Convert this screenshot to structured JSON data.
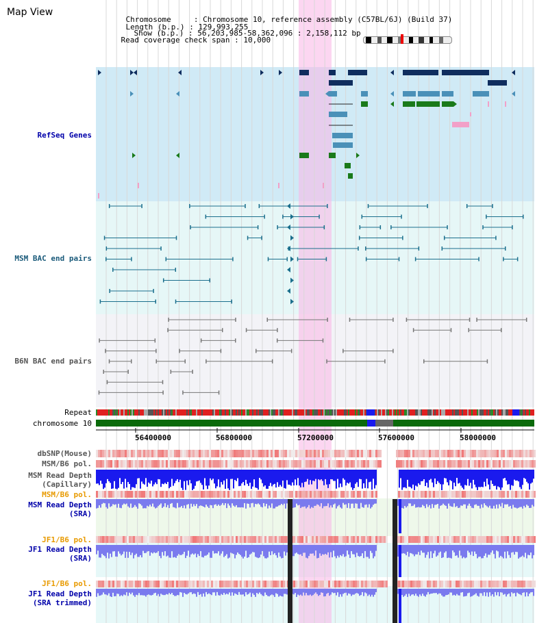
{
  "title": "Map View",
  "info": {
    "chromosome_label": "Chromosome",
    "chromosome_value": "Chromosome 10, reference assembly (C57BL/6J) (Build 37)",
    "length_label": "Length (b.p.)",
    "length_value": "129,993,255",
    "show_label": "Show (b.p.)",
    "show_value": "56,203,985-58,362,096 : 2,158,112 bp",
    "coverage_label": "Read coverage check span",
    "coverage_value": "10,000"
  },
  "tracks": {
    "refseq": "RefSeq Genes",
    "msm_bac": "MSM BAC end pairs",
    "b6n_bac": "B6N BAC end pairs",
    "repeat": "Repeat",
    "chromosome": "chromosome 10",
    "dbsnp": "dbSNP(Mouse)",
    "msm_pol1": "MSM/B6 pol.",
    "msm_depth_cap_1": "MSM Read Depth",
    "msm_depth_cap_2": "(Capillary)",
    "msm_pol2": "MSM/B6 pol.",
    "msm_depth_sra_1": "MSM Read Depth",
    "msm_depth_sra_2": "(SRA)",
    "jf1_pol1": "JF1/B6 pol.",
    "jf1_depth_sra_1": "JF1 Read Depth",
    "jf1_depth_sra_2": "(SRA)",
    "jf1_pol2": "JF1/B6 pol.",
    "jf1_depth_trim_1": "JF1 Read Depth",
    "jf1_depth_trim_2": "(SRA trimmed)"
  },
  "axis_ticks": [
    "56400000",
    "56800000",
    "57200000",
    "57600000",
    "58000000"
  ],
  "colors": {
    "refseq_bg": "#d0eaf6",
    "msm_bac_bg": "#e6f7f7",
    "b6n_bac_bg": "#f3f3f7",
    "dark_gene": "#0f2d5e",
    "mid_gene": "#4a90b8",
    "green_gene": "#1a7a1a",
    "pink_gene": "#f2a0c8",
    "msm_bac": "#1a6e8c",
    "b6n_bac": "#777777",
    "chromosome": "#0a6a0a",
    "depth_blue": "#1a1aee",
    "depth_light": "#7a7aee",
    "label_blue": "#0000aa",
    "label_orange": "#e89a00",
    "label_teal": "#1a5a7a",
    "label_gray": "#555555"
  }
}
